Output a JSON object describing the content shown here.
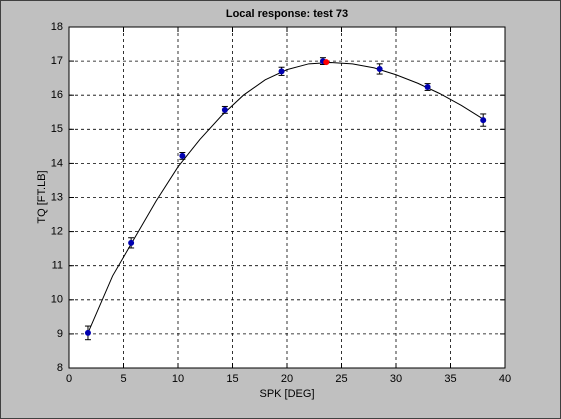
{
  "chart_data": {
    "type": "scatter",
    "title": "Local response: test 73",
    "xlabel": "SPK [DEG]",
    "ylabel": "TQ [FT.LB]",
    "xlim": [
      0,
      40
    ],
    "ylim": [
      8,
      18
    ],
    "xticks": [
      0,
      5,
      10,
      15,
      20,
      25,
      30,
      35,
      40
    ],
    "yticks": [
      8,
      9,
      10,
      11,
      12,
      13,
      14,
      15,
      16,
      17,
      18
    ],
    "grid": true,
    "series": [
      {
        "type": "line",
        "color": "#000000",
        "x": [
          1.7,
          4,
          6,
          8,
          10,
          12,
          14,
          16,
          18,
          20,
          22,
          24,
          26,
          28,
          30,
          32,
          34,
          36,
          38
        ],
        "values": [
          9.0,
          10.7,
          11.8,
          12.9,
          13.9,
          14.7,
          15.4,
          16.0,
          16.45,
          16.75,
          16.92,
          16.96,
          16.92,
          16.8,
          16.6,
          16.35,
          16.05,
          15.7,
          15.3
        ]
      },
      {
        "type": "scatter",
        "color": "#0000b0",
        "x": [
          1.74,
          5.7,
          10.4,
          14.3,
          19.5,
          23.3,
          28.5,
          32.9,
          38.0
        ],
        "values": [
          9.03,
          11.67,
          14.22,
          15.57,
          16.7,
          17.0,
          16.77,
          16.24,
          15.27
        ],
        "errors": [
          0.2,
          0.15,
          0.1,
          0.1,
          0.12,
          0.1,
          0.15,
          0.1,
          0.18
        ]
      },
      {
        "type": "scatter",
        "color": "#ff0000",
        "x": [
          23.6
        ],
        "values": [
          16.97
        ]
      }
    ]
  }
}
